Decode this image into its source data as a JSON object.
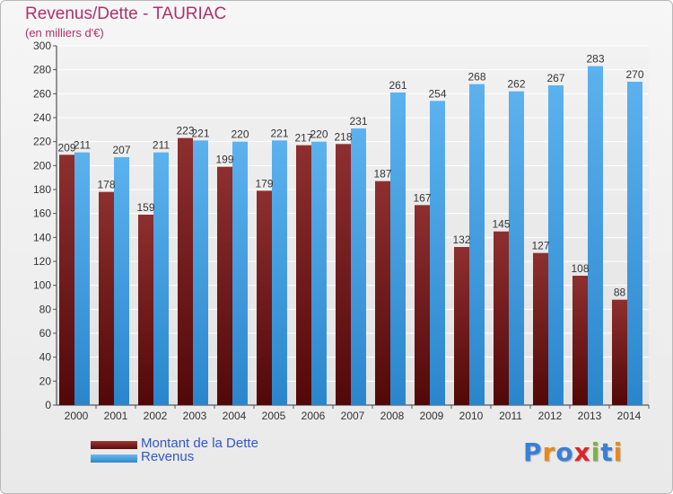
{
  "chart_data": {
    "type": "bar",
    "title": "Revenus/Dette - TAURIAC",
    "subtitle": "(en milliers d'€)",
    "categories": [
      "2000",
      "2001",
      "2002",
      "2003",
      "2004",
      "2005",
      "2006",
      "2007",
      "2008",
      "2009",
      "2010",
      "2011",
      "2012",
      "2013",
      "2014"
    ],
    "series": [
      {
        "name": "Montant de la Dette",
        "color": "#7a1a1a",
        "values": [
          209,
          178,
          159,
          223,
          199,
          179,
          217,
          218,
          187,
          167,
          132,
          145,
          127,
          108,
          88
        ]
      },
      {
        "name": "Revenus",
        "color": "#4aa3e6",
        "values": [
          211,
          207,
          211,
          221,
          220,
          221,
          220,
          231,
          261,
          254,
          268,
          262,
          267,
          283,
          270
        ]
      }
    ],
    "ylim": [
      0,
      300
    ],
    "yticks": [
      0,
      20,
      40,
      60,
      80,
      100,
      120,
      140,
      160,
      180,
      200,
      220,
      240,
      260,
      280,
      300
    ],
    "grid": true,
    "legend_position": "bottom-left"
  },
  "legend": [
    {
      "label": "Montant de la Dette"
    },
    {
      "label": "Revenus"
    }
  ],
  "logo": {
    "text": "Proxiti",
    "colors": [
      "#3a7fd5",
      "#e8891c",
      "#3a7fd5",
      "#d8262c",
      "#7cb342",
      "#3a7fd5",
      "#e8891c"
    ]
  }
}
